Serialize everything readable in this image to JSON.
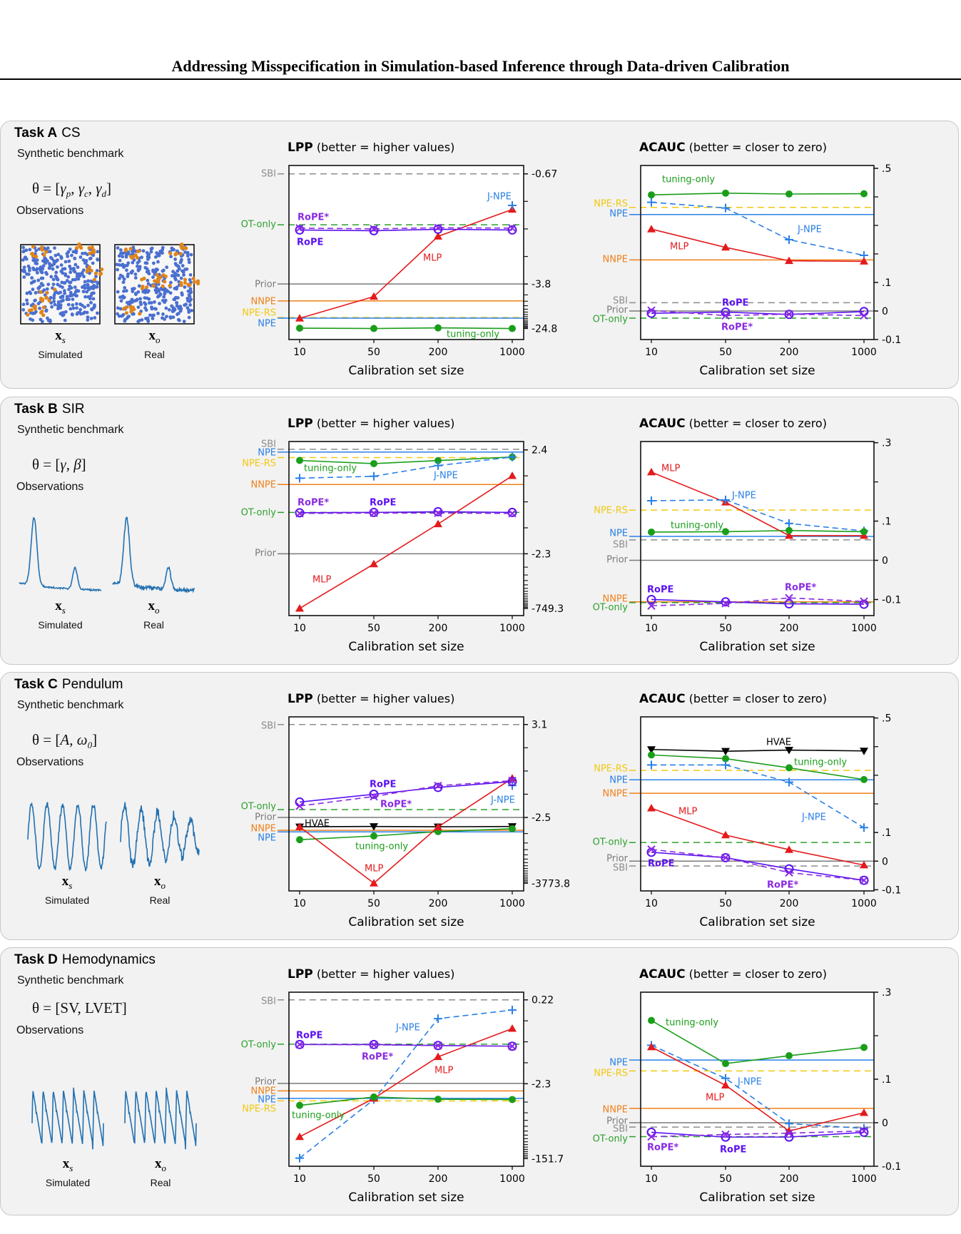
{
  "header": {
    "title": "Addressing Misspecification in Simulation-based Inference through Data-driven Calibration"
  },
  "tasks": [
    {
      "label": "Task A",
      "name": "CS",
      "subtitle": "Synthetic benchmark",
      "formula": {
        "lhs": "θ = [",
        "items": [
          {
            "base": "γ",
            "sub": "p"
          },
          {
            "base": "γ",
            "sub": "c"
          },
          {
            "base": "γ",
            "sub": "d"
          }
        ],
        "rhs": "]"
      },
      "observations_label": "Observations",
      "observation_kind": "cell-scatter",
      "sim_symbol": {
        "base": "x",
        "sub": "s"
      },
      "real_symbol": {
        "base": "x",
        "sub": "o"
      },
      "sim_label": "Simulated",
      "real_label": "Real"
    },
    {
      "label": "Task B",
      "name": "SIR",
      "subtitle": "Synthetic benchmark",
      "formula": {
        "lhs": "θ = [",
        "items": [
          {
            "base": "γ",
            "sub": ""
          },
          {
            "base": "β",
            "sub": ""
          }
        ],
        "rhs": "]"
      },
      "observations_label": "Observations",
      "observation_kind": "epidemic-curve",
      "sim_symbol": {
        "base": "x",
        "sub": "s"
      },
      "real_symbol": {
        "base": "x",
        "sub": "o"
      },
      "sim_label": "Simulated",
      "real_label": "Real"
    },
    {
      "label": "Task C",
      "name": "Pendulum",
      "subtitle": "Synthetic benchmark",
      "formula": {
        "lhs": "θ = [",
        "items": [
          {
            "base": "A",
            "sub": ""
          },
          {
            "base": "ω",
            "sub": "0"
          }
        ],
        "rhs": "]"
      },
      "observations_label": "Observations",
      "observation_kind": "oscillation",
      "sim_symbol": {
        "base": "x",
        "sub": "s"
      },
      "real_symbol": {
        "base": "x",
        "sub": "o"
      },
      "sim_label": "Simulated",
      "real_label": "Real"
    },
    {
      "label": "Task D",
      "name": "Hemodynamics",
      "subtitle": "Synthetic benchmark",
      "formula": {
        "lhs": "θ = [",
        "items": [
          {
            "base": "SV",
            "sub": ""
          },
          {
            "base": "LVET",
            "sub": ""
          }
        ],
        "rhs": "]"
      },
      "observations_label": "Observations",
      "observation_kind": "pulse-waveform",
      "sim_symbol": {
        "base": "x",
        "sub": "s"
      },
      "real_symbol": {
        "base": "x",
        "sub": "o"
      },
      "sim_label": "Simulated",
      "real_label": "Real"
    }
  ],
  "styles": {
    "tuning-only": {
      "color": "#1a9e1a",
      "marker": "filled-circle",
      "dash": false
    },
    "J-NPE": {
      "color": "#2a80e6",
      "marker": "plus",
      "dash": true
    },
    "MLP": {
      "color": "#e41a1c",
      "marker": "triangle-up",
      "dash": false
    },
    "RoPE": {
      "color": "#5b12f0",
      "marker": "open-circle",
      "dash": false
    },
    "RoPE*": {
      "color": "#8a2be2",
      "marker": "x",
      "dash": true
    },
    "HVAE": {
      "color": "#000000",
      "marker": "triangle-down",
      "dash": false
    },
    "SBI": {
      "color": "#8c8c8c",
      "dash": true
    },
    "Prior": {
      "color": "#7a7a7a",
      "dash": false
    },
    "NPE": {
      "color": "#2a80e6",
      "dash": false
    },
    "NPE-RS": {
      "color": "#f2c80f",
      "dash": true
    },
    "NNPE": {
      "color": "#f08018",
      "dash": false
    },
    "OT-only": {
      "color": "#2ca02c",
      "dash": true
    }
  },
  "chart_data": [
    {
      "task": "A",
      "type": "line",
      "title": "LPP",
      "title_note": "(better = higher values)",
      "xlabel": "Calibration set size",
      "x": [
        10,
        50,
        200,
        1000
      ],
      "x_tick_labels": [
        "10",
        "50",
        "200",
        "1000"
      ],
      "y_scale": "symlog",
      "y_ticks": [
        {
          "value": -0.67,
          "label": "-0.67"
        },
        {
          "value": -3.8,
          "label": "-3.8"
        },
        {
          "value": -24.8,
          "label": "-24.8"
        }
      ],
      "reference_lines": [
        {
          "name": "SBI",
          "value": -0.67
        },
        {
          "name": "OT-only",
          "value": -1.72
        },
        {
          "name": "Prior",
          "value": -3.8
        },
        {
          "name": "NNPE",
          "value": -8.1
        },
        {
          "name": "NPE-RS",
          "value": -16.1
        },
        {
          "name": "NPE",
          "value": -16.5
        }
      ],
      "series": [
        {
          "name": "tuning-only",
          "values": [
            -24.6,
            -24.9,
            -24.3,
            -24.9
          ]
        },
        {
          "name": "MLP",
          "values": [
            -16.6,
            -6.73,
            -2.04,
            -1.35
          ]
        },
        {
          "name": "J-NPE",
          "values": [
            null,
            null,
            null,
            -1.26
          ]
        },
        {
          "name": "RoPE",
          "values": [
            -1.86,
            -1.88,
            -1.84,
            -1.86
          ]
        },
        {
          "name": "RoPE*",
          "values": [
            -1.81,
            -1.83,
            -1.8,
            -1.81
          ]
        }
      ]
    },
    {
      "task": "A",
      "type": "line",
      "title": "ACAUC",
      "title_note": "(better = closer to zero)",
      "xlabel": "Calibration set size",
      "x": [
        10,
        50,
        200,
        1000
      ],
      "x_tick_labels": [
        "10",
        "50",
        "200",
        "1000"
      ],
      "y_scale": "linear",
      "ylim": [
        -0.1,
        0.51
      ],
      "y_ticks": [
        {
          "value": 0.5,
          "label": ".5"
        },
        {
          "value": 0.1,
          "label": ".1"
        },
        {
          "value": 0,
          "label": "0"
        },
        {
          "value": -0.1,
          "label": "-0.1"
        }
      ],
      "y_minor_ticks": [
        0.4,
        0.3,
        0.2
      ],
      "reference_lines": [
        {
          "name": "NPE-RS",
          "value": 0.363
        },
        {
          "name": "NPE",
          "value": 0.338
        },
        {
          "name": "NNPE",
          "value": 0.179
        },
        {
          "name": "SBI",
          "value": 0.029
        },
        {
          "name": "Prior",
          "value": 0
        },
        {
          "name": "OT-only",
          "value": -0.025
        }
      ],
      "series": [
        {
          "name": "tuning-only",
          "values": [
            0.407,
            0.413,
            0.41,
            0.411
          ]
        },
        {
          "name": "J-NPE",
          "values": [
            0.381,
            0.361,
            0.25,
            0.195
          ]
        },
        {
          "name": "MLP",
          "values": [
            0.287,
            0.223,
            0.176,
            0.174
          ]
        },
        {
          "name": "RoPE",
          "values": [
            -0.008,
            -0.004,
            -0.012,
            -0.002
          ]
        },
        {
          "name": "RoPE*",
          "values": [
            0.002,
            -0.016,
            -0.011,
            -0.016
          ]
        }
      ]
    },
    {
      "task": "B",
      "type": "line",
      "title": "LPP",
      "title_note": "(better = higher values)",
      "xlabel": "Calibration set size",
      "x": [
        10,
        50,
        200,
        1000
      ],
      "x_tick_labels": [
        "10",
        "50",
        "200",
        "1000"
      ],
      "y_scale": "symlog",
      "y_ticks": [
        {
          "value": 2.4,
          "label": "2.4"
        },
        {
          "value": -2.3,
          "label": "-2.3"
        },
        {
          "value": -749.3,
          "label": "-749.3"
        }
      ],
      "reference_lines": [
        {
          "name": "SBI",
          "value": 2.45
        },
        {
          "name": "NPE",
          "value": 2.23
        },
        {
          "name": "NPE-RS",
          "value": 1.84
        },
        {
          "name": "NNPE",
          "value": 0.52
        },
        {
          "name": "OT-only",
          "value": -0.26
        },
        {
          "name": "Prior",
          "value": -2.3
        }
      ],
      "series": [
        {
          "name": "tuning-only",
          "values": [
            1.66,
            1.47,
            1.65,
            1.88
          ]
        },
        {
          "name": "J-NPE",
          "values": [
            0.76,
            0.84,
            1.36,
            1.88
          ]
        },
        {
          "name": "MLP",
          "values": [
            -749.3,
            -8.1,
            -0.65,
            0.86
          ]
        },
        {
          "name": "RoPE",
          "values": [
            -0.27,
            -0.26,
            -0.24,
            -0.26
          ]
        },
        {
          "name": "RoPE*",
          "values": [
            -0.29,
            -0.28,
            -0.28,
            -0.29
          ]
        }
      ]
    },
    {
      "task": "B",
      "type": "line",
      "title": "ACAUC",
      "title_note": "(better = closer to zero)",
      "xlabel": "Calibration set size",
      "x": [
        10,
        50,
        200,
        1000
      ],
      "x_tick_labels": [
        "10",
        "50",
        "200",
        "1000"
      ],
      "y_scale": "linear",
      "ylim": [
        -0.141,
        0.303
      ],
      "y_ticks": [
        {
          "value": 0.3,
          "label": ".3"
        },
        {
          "value": 0.1,
          "label": ".1"
        },
        {
          "value": 0,
          "label": "0"
        },
        {
          "value": -0.1,
          "label": "-0.1"
        }
      ],
      "y_minor_ticks": [
        0.2
      ],
      "reference_lines": [
        {
          "name": "NPE-RS",
          "value": 0.128
        },
        {
          "name": "NPE",
          "value": 0.061
        },
        {
          "name": "SBI",
          "value": 0.052
        },
        {
          "name": "Prior",
          "value": 0
        },
        {
          "name": "NNPE",
          "value": -0.106
        },
        {
          "name": "OT-only",
          "value": -0.108
        }
      ],
      "series": [
        {
          "name": "MLP",
          "values": [
            0.225,
            0.148,
            0.063,
            0.063
          ]
        },
        {
          "name": "J-NPE",
          "values": [
            0.152,
            0.154,
            0.094,
            0.075
          ]
        },
        {
          "name": "tuning-only",
          "values": [
            0.072,
            0.073,
            0.076,
            0.073
          ]
        },
        {
          "name": "RoPE",
          "values": [
            -0.1,
            -0.106,
            -0.111,
            -0.112
          ]
        },
        {
          "name": "RoPE*",
          "values": [
            -0.116,
            -0.11,
            -0.096,
            -0.105
          ]
        }
      ]
    },
    {
      "task": "C",
      "type": "line",
      "title": "LPP",
      "title_note": "(better = higher values)",
      "xlabel": "Calibration set size",
      "x": [
        10,
        50,
        200,
        1000
      ],
      "x_tick_labels": [
        "10",
        "50",
        "200",
        "1000"
      ],
      "y_scale": "symlog",
      "y_ticks": [
        {
          "value": 3.1,
          "label": "3.1"
        },
        {
          "value": -2.5,
          "label": "-2.5"
        },
        {
          "value": -3773.8,
          "label": "-3773.8"
        }
      ],
      "reference_lines": [
        {
          "name": "SBI",
          "value": 3.1
        },
        {
          "name": "OT-only",
          "value": -1.79
        },
        {
          "name": "Prior",
          "value": -2.5
        },
        {
          "name": "NNPE",
          "value": -12.6
        },
        {
          "name": "NPE",
          "value": -15.2
        }
      ],
      "series": [
        {
          "name": "HVAE",
          "values": [
            -8.4,
            -8.1,
            -8.4,
            -8.1
          ]
        },
        {
          "name": "tuning-only",
          "values": [
            -36,
            -24,
            -14.7,
            -10.6
          ]
        },
        {
          "name": "MLP",
          "values": [
            -8.4,
            -3773.8,
            -8.6,
            -0.14
          ]
        },
        {
          "name": "J-NPE",
          "values": [
            null,
            null,
            null,
            -0.4
          ]
        },
        {
          "name": "RoPE",
          "values": [
            -1.25,
            -0.8,
            -0.48,
            -0.25
          ]
        },
        {
          "name": "RoPE*",
          "values": [
            -1.52,
            -0.92,
            -0.41,
            -0.22
          ]
        }
      ]
    },
    {
      "task": "C",
      "type": "line",
      "title": "ACAUC",
      "title_note": "(better = closer to zero)",
      "xlabel": "Calibration set size",
      "x": [
        10,
        50,
        200,
        1000
      ],
      "x_tick_labels": [
        "10",
        "50",
        "200",
        "1000"
      ],
      "y_scale": "linear",
      "ylim": [
        -0.104,
        0.504
      ],
      "y_ticks": [
        {
          "value": 0.5,
          "label": ".5"
        },
        {
          "value": 0.1,
          "label": ".1"
        },
        {
          "value": 0,
          "label": "0"
        },
        {
          "value": -0.1,
          "label": "-0.1"
        }
      ],
      "y_minor_ticks": [
        0.4,
        0.3,
        0.2
      ],
      "reference_lines": [
        {
          "name": "NPE-RS",
          "value": 0.317
        },
        {
          "name": "NPE",
          "value": 0.284
        },
        {
          "name": "NNPE",
          "value": 0.237
        },
        {
          "name": "OT-only",
          "value": 0.065
        },
        {
          "name": "Prior",
          "value": 0
        },
        {
          "name": "SBI",
          "value": -0.017
        }
      ],
      "series": [
        {
          "name": "HVAE",
          "values": [
            0.39,
            0.384,
            0.388,
            0.385
          ]
        },
        {
          "name": "tuning-only",
          "values": [
            0.371,
            0.358,
            0.326,
            0.285
          ]
        },
        {
          "name": "J-NPE",
          "values": [
            0.336,
            0.336,
            0.276,
            0.117
          ]
        },
        {
          "name": "MLP",
          "values": [
            0.185,
            0.091,
            0.04,
            -0.014
          ]
        },
        {
          "name": "RoPE",
          "values": [
            0.031,
            0.012,
            -0.027,
            -0.067
          ]
        },
        {
          "name": "RoPE*",
          "values": [
            0.041,
            0.012,
            -0.04,
            -0.067
          ]
        }
      ]
    },
    {
      "task": "D",
      "type": "line",
      "title": "LPP",
      "title_note": "(better = higher values)",
      "xlabel": "Calibration set size",
      "x": [
        10,
        50,
        200,
        1000
      ],
      "x_tick_labels": [
        "10",
        "50",
        "200",
        "1000"
      ],
      "y_scale": "symlog",
      "y_ticks": [
        {
          "value": 0.22,
          "label": "0.22"
        },
        {
          "value": -2.3,
          "label": "-2.3"
        },
        {
          "value": -151.7,
          "label": "-151.7"
        }
      ],
      "reference_lines": [
        {
          "name": "SBI",
          "value": 0.22
        },
        {
          "name": "OT-only",
          "value": -0.71
        },
        {
          "name": "Prior",
          "value": -2.28
        },
        {
          "name": "NNPE",
          "value": -3.76
        },
        {
          "name": "NPE",
          "value": -6.0
        },
        {
          "name": "NPE-RS",
          "value": -6.95
        }
      ],
      "series": [
        {
          "name": "J-NPE",
          "values": [
            -148,
            -6.4,
            -0.12,
            0.03
          ]
        },
        {
          "name": "MLP",
          "values": [
            -49,
            -6.0,
            -1.11,
            -0.32
          ]
        },
        {
          "name": "tuning-only",
          "values": [
            -9.0,
            -5.5,
            -6.3,
            -6.4
          ]
        },
        {
          "name": "RoPE",
          "values": [
            -0.72,
            -0.72,
            -0.75,
            -0.77
          ]
        },
        {
          "name": "RoPE*",
          "values": [
            -0.72,
            -0.73,
            -0.75,
            -0.77
          ]
        }
      ]
    },
    {
      "task": "D",
      "type": "line",
      "title": "ACAUC",
      "title_note": "(better = closer to zero)",
      "xlabel": "Calibration set size",
      "x": [
        10,
        50,
        200,
        1000
      ],
      "x_tick_labels": [
        "10",
        "50",
        "200",
        "1000"
      ],
      "y_scale": "linear",
      "ylim": [
        -0.1,
        0.3
      ],
      "y_ticks": [
        {
          "value": 0.3,
          "label": ".3"
        },
        {
          "value": 0.1,
          "label": ".1"
        },
        {
          "value": 0,
          "label": "0"
        },
        {
          "value": -0.1,
          "label": "-0.1"
        }
      ],
      "y_minor_ticks": [
        0.2
      ],
      "reference_lines": [
        {
          "name": "NPE",
          "value": 0.144
        },
        {
          "name": "NPE-RS",
          "value": 0.119
        },
        {
          "name": "NNPE",
          "value": 0.033
        },
        {
          "name": "Prior",
          "value": 0
        },
        {
          "name": "SBI",
          "value": -0.01
        },
        {
          "name": "OT-only",
          "value": -0.032
        }
      ],
      "series": [
        {
          "name": "tuning-only",
          "values": [
            0.235,
            0.136,
            0.154,
            0.173
          ]
        },
        {
          "name": "J-NPE",
          "values": [
            0.178,
            0.102,
            -0.002,
            -0.013
          ]
        },
        {
          "name": "MLP",
          "values": [
            0.174,
            0.086,
            -0.019,
            0.023
          ]
        },
        {
          "name": "RoPE",
          "values": [
            -0.022,
            -0.033,
            -0.033,
            -0.022
          ]
        },
        {
          "name": "RoPE*",
          "values": [
            -0.032,
            -0.027,
            -0.024,
            -0.019
          ]
        }
      ]
    }
  ]
}
